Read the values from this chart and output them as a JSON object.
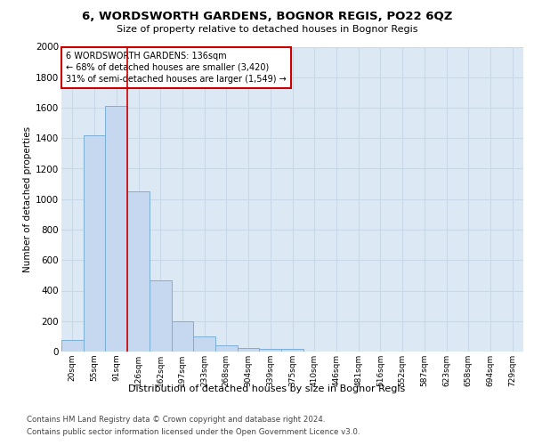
{
  "title": "6, WORDSWORTH GARDENS, BOGNOR REGIS, PO22 6QZ",
  "subtitle": "Size of property relative to detached houses in Bognor Regis",
  "xlabel": "Distribution of detached houses by size in Bognor Regis",
  "ylabel": "Number of detached properties",
  "categories": [
    "20sqm",
    "55sqm",
    "91sqm",
    "126sqm",
    "162sqm",
    "197sqm",
    "233sqm",
    "268sqm",
    "304sqm",
    "339sqm",
    "375sqm",
    "410sqm",
    "446sqm",
    "481sqm",
    "516sqm",
    "552sqm",
    "587sqm",
    "623sqm",
    "658sqm",
    "694sqm",
    "729sqm"
  ],
  "values": [
    75,
    1420,
    1610,
    1050,
    470,
    200,
    100,
    40,
    25,
    20,
    15,
    0,
    0,
    0,
    0,
    0,
    0,
    0,
    0,
    0,
    0
  ],
  "bar_color": "#c5d8ef",
  "bar_edge_color": "#7bafd4",
  "red_line_x": 2.5,
  "highlight_color": "#cc0000",
  "annotation_text": "6 WORDSWORTH GARDENS: 136sqm\n← 68% of detached houses are smaller (3,420)\n31% of semi-detached houses are larger (1,549) →",
  "annotation_box_color": "#ffffff",
  "annotation_box_edge_color": "#cc0000",
  "ylim": [
    0,
    2000
  ],
  "yticks": [
    0,
    200,
    400,
    600,
    800,
    1000,
    1200,
    1400,
    1600,
    1800,
    2000
  ],
  "background_color": "#dce9f5",
  "grid_color": "#c8d8e8",
  "footer_line1": "Contains HM Land Registry data © Crown copyright and database right 2024.",
  "footer_line2": "Contains public sector information licensed under the Open Government Licence v3.0."
}
